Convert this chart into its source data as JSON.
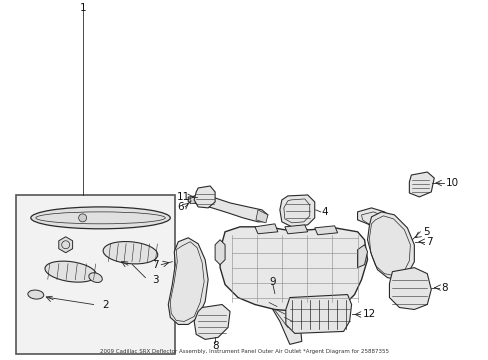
{
  "bg_color": "#ffffff",
  "fig_width": 4.89,
  "fig_height": 3.6,
  "dpi": 100,
  "lc": "#2a2a2a",
  "fc_light": "#f0f0f0",
  "fc_part": "#e8e8e8",
  "fc_box": "#ebebeb",
  "caption": "2009 Cadillac SRX Deflector Assembly, Instrument Panel Outer Air Outlet *Argent Diagram for 25887355",
  "label_fs": 7.5,
  "caption_fs": 4.0
}
